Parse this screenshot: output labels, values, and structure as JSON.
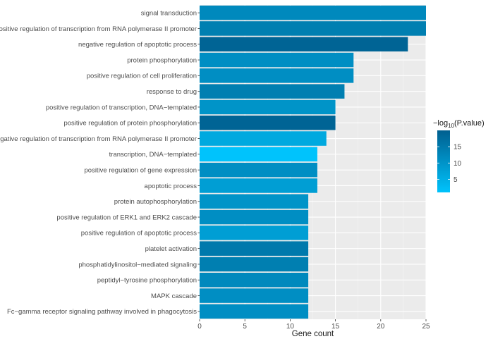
{
  "chart_data": {
    "type": "bar",
    "orientation": "horizontal",
    "xlabel": "Gene count",
    "ylabel": "",
    "xlim": [
      0,
      25
    ],
    "x_ticks": [
      0,
      5,
      10,
      15,
      20,
      25
    ],
    "grid": true,
    "categories": [
      "signal transduction",
      "positive regulation of transcription from RNA polymerase II promoter",
      "negative regulation of apoptotic process",
      "protein phosphorylation",
      "positive regulation of cell proliferation",
      "response to drug",
      "positive regulation of transcription, DNA−templated",
      "positive regulation of protein phosphorylation",
      "negative regulation of transcription from RNA polymerase II promoter",
      "transcription, DNA−templated",
      "positive regulation of gene expression",
      "apoptotic process",
      "protein autophosphorylation",
      "positive regulation of ERK1 and ERK2 cascade",
      "positive regulation of apoptotic process",
      "platelet activation",
      "phosphatidylinositol−mediated signaling",
      "peptidyl−tyrosine phosphorylation",
      "MAPK cascade",
      "Fc−gamma receptor signaling pathway involved in phagocytosis"
    ],
    "values": [
      25,
      25,
      23,
      17,
      17,
      16,
      15,
      15,
      14,
      13,
      13,
      13,
      12,
      12,
      12,
      12,
      12,
      12,
      12,
      12
    ],
    "color_values": [
      12,
      14,
      19,
      11,
      11,
      14,
      10,
      19,
      6,
      1,
      11,
      8,
      10,
      11,
      8,
      15,
      14,
      12,
      11,
      11
    ],
    "color_scale": {
      "title_prefix": "−log",
      "title_sub": "10",
      "title_suffix": "(P.value)",
      "min": 1,
      "max": 20,
      "low_color": "#00c3fc",
      "high_color": "#005f8f",
      "ticks": [
        "5",
        "10",
        "15"
      ]
    }
  }
}
